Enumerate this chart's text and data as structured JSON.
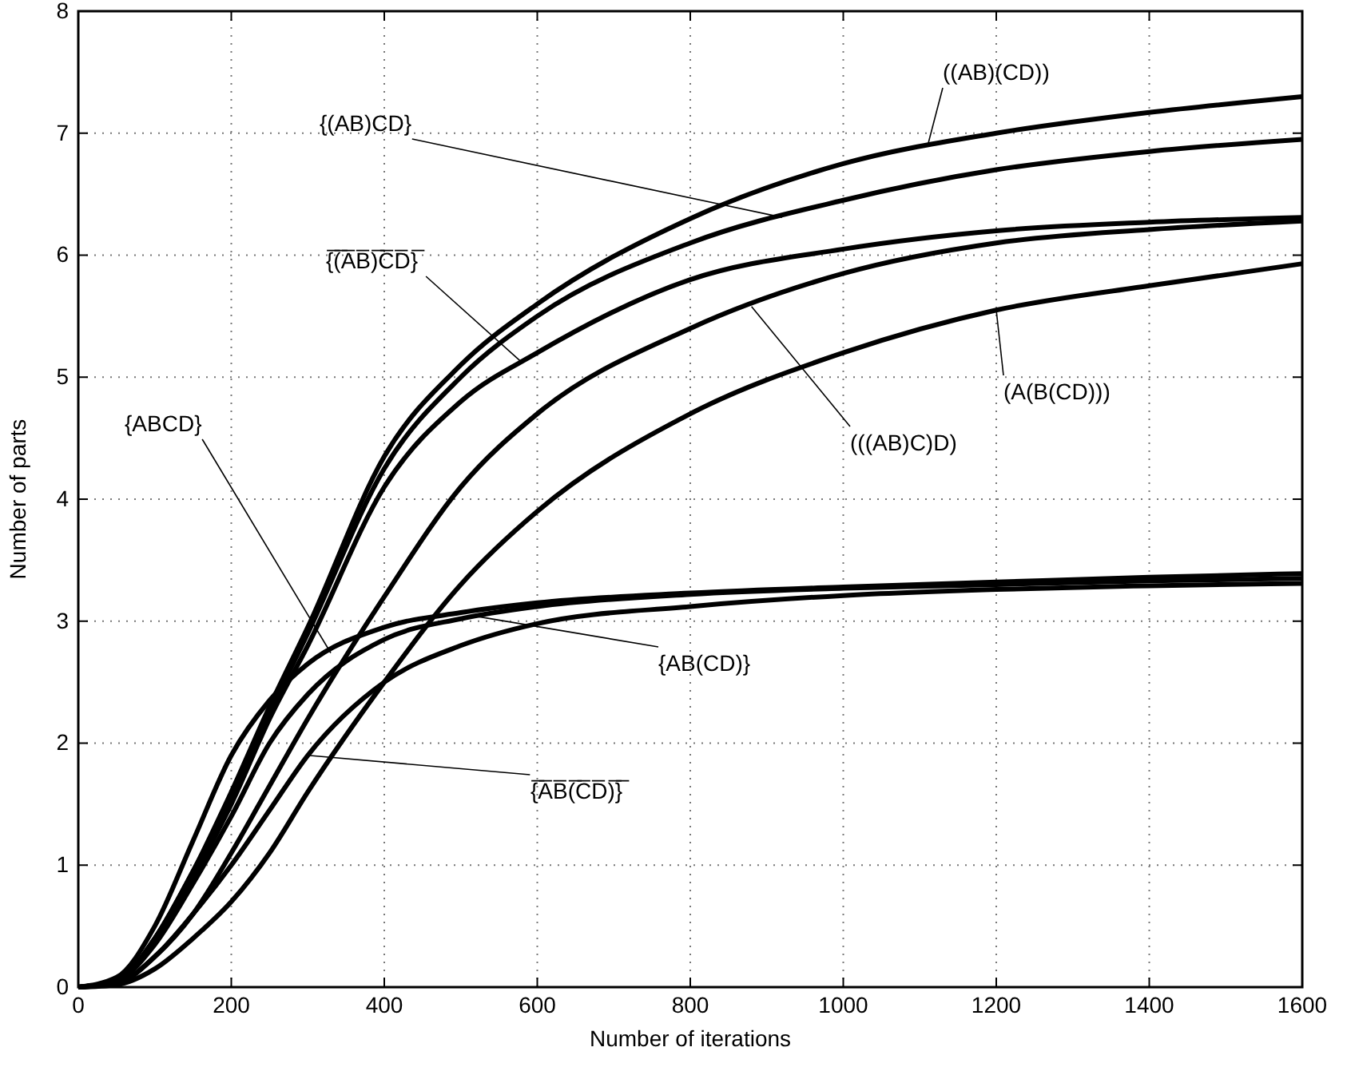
{
  "chart_data": {
    "type": "line",
    "xlabel": "Number of iterations",
    "ylabel": "Number of parts",
    "x": [
      0,
      50,
      100,
      150,
      200,
      250,
      300,
      400,
      500,
      600,
      800,
      1000,
      1200,
      1400,
      1600
    ],
    "xlim": [
      0,
      1600
    ],
    "xticks": [
      0,
      200,
      400,
      600,
      800,
      1000,
      1200,
      1400,
      1600
    ],
    "ylim": [
      0,
      8
    ],
    "yticks": [
      0,
      1,
      2,
      3,
      4,
      5,
      6,
      7,
      8
    ],
    "grid": true,
    "marker": "none",
    "line_style": "solid",
    "series": [
      {
        "color": "#000000",
        "values": [
          0,
          0.05,
          0.4,
          0.95,
          1.6,
          2.3,
          2.95,
          4.35,
          5.1,
          5.6,
          6.3,
          6.75,
          7.0,
          7.17,
          7.3
        ]
      },
      {
        "color": "#000000",
        "values": [
          0,
          0.05,
          0.4,
          0.95,
          1.55,
          2.25,
          2.9,
          4.25,
          5.0,
          5.5,
          6.1,
          6.45,
          6.7,
          6.85,
          6.95
        ]
      },
      {
        "color": "#000000",
        "values": [
          0,
          0.05,
          0.38,
          0.9,
          1.5,
          2.2,
          2.8,
          4.1,
          4.8,
          5.2,
          5.8,
          6.05,
          6.2,
          6.27,
          6.31
        ]
      },
      {
        "color": "#000000",
        "values": [
          0,
          0.03,
          0.25,
          0.6,
          1.1,
          1.65,
          2.2,
          3.2,
          4.1,
          4.7,
          5.4,
          5.85,
          6.1,
          6.21,
          6.28
        ]
      },
      {
        "color": "#000000",
        "values": [
          0,
          0.02,
          0.15,
          0.4,
          0.7,
          1.1,
          1.6,
          2.5,
          3.3,
          3.9,
          4.7,
          5.2,
          5.55,
          5.75,
          5.93
        ]
      },
      {
        "color": "#000000",
        "values": [
          0,
          0.08,
          0.5,
          1.2,
          1.9,
          2.35,
          2.65,
          2.95,
          3.07,
          3.15,
          3.23,
          3.28,
          3.32,
          3.36,
          3.39
        ]
      },
      {
        "color": "#000000",
        "values": [
          0,
          0.05,
          0.35,
          0.85,
          1.4,
          2.0,
          2.4,
          2.85,
          3.02,
          3.12,
          3.22,
          3.27,
          3.3,
          3.33,
          3.35
        ]
      },
      {
        "color": "#000000",
        "values": [
          0,
          0.03,
          0.25,
          0.6,
          1.0,
          1.45,
          1.9,
          2.5,
          2.8,
          2.98,
          3.12,
          3.21,
          3.26,
          3.29,
          3.31
        ]
      }
    ],
    "annotations": [
      {
        "text": "((AB)(CD))",
        "x": 1110,
        "y": 6.89
      },
      {
        "text": "{(AB)CD}",
        "x": 920,
        "y": 6.31
      },
      {
        "text": "{̅(̅A̅B̅)̅C̅D̅}̅",
        "x": 580,
        "y": 5.12
      },
      {
        "text": "(((AB)C)D)",
        "x": 880,
        "y": 5.58
      },
      {
        "text": "(A(B(CD)))",
        "x": 1200,
        "y": 5.55
      },
      {
        "text": "{ABCD}",
        "x": 330,
        "y": 2.74
      },
      {
        "text": "{AB(CD)}",
        "x": 520,
        "y": 3.04
      },
      {
        "text": "{̅A̅B̅(̅C̅D̅)̅}̅",
        "x": 300,
        "y": 1.9
      }
    ]
  }
}
